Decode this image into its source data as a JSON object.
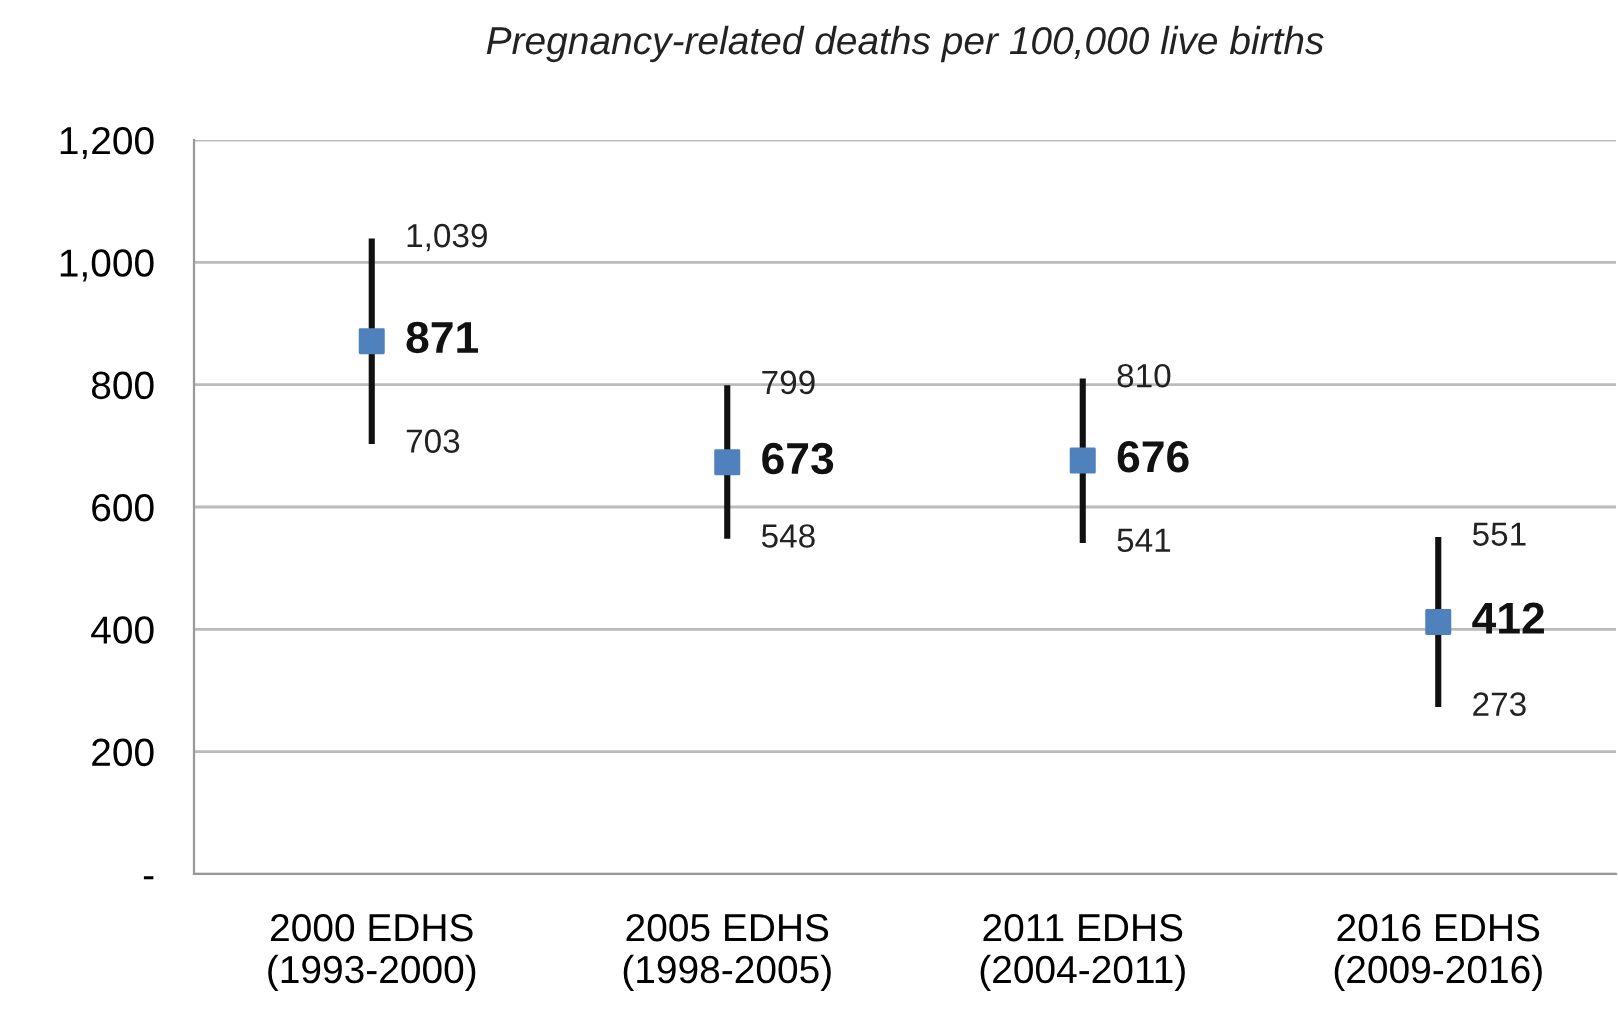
{
  "chart_data": {
    "type": "scatter",
    "title": "Pregnancy-related deaths per 100,000 live births",
    "categories": [
      "2000 EDHS\n(1993-2000)",
      "2005 EDHS\n(1998-2005)",
      "2011 EDHS\n(2004-2011)",
      "2016 EDHS\n(2009-2016)"
    ],
    "values": [
      871,
      673,
      676,
      412
    ],
    "errors": [
      [
        703,
        1039
      ],
      [
        548,
        799
      ],
      [
        541,
        810
      ],
      [
        273,
        551
      ]
    ],
    "color": "#4f81bd",
    "marker": "square",
    "data_labels": true,
    "ylim": [
      0,
      1200
    ],
    "yticks": [
      {
        "value": 0,
        "label": "-"
      },
      {
        "value": 200,
        "label": "200"
      },
      {
        "value": 400,
        "label": "400"
      },
      {
        "value": 600,
        "label": "600"
      },
      {
        "value": 800,
        "label": "800"
      },
      {
        "value": 1000,
        "label": "1,000"
      },
      {
        "value": 1200,
        "label": "1,200"
      }
    ],
    "grid": "y",
    "legend": false,
    "annotations": [
      {
        "text": "1,039",
        "x": "2000 EDHS\n(1993-2000)",
        "y": 1039
      },
      {
        "text": "703",
        "x": "2000 EDHS\n(1993-2000)",
        "y": 703
      },
      {
        "text": "799",
        "x": "2005 EDHS\n(1998-2005)",
        "y": 799
      },
      {
        "text": "548",
        "x": "2005 EDHS\n(1998-2005)",
        "y": 548
      },
      {
        "text": "810",
        "x": "2011 EDHS\n(2004-2011)",
        "y": 810
      },
      {
        "text": "541",
        "x": "2011 EDHS\n(2004-2011)",
        "y": 541
      },
      {
        "text": "551",
        "x": "2016 EDHS\n(2009-2016)",
        "y": 551
      },
      {
        "text": "273",
        "x": "2016 EDHS\n(2009-2016)",
        "y": 273
      }
    ]
  }
}
